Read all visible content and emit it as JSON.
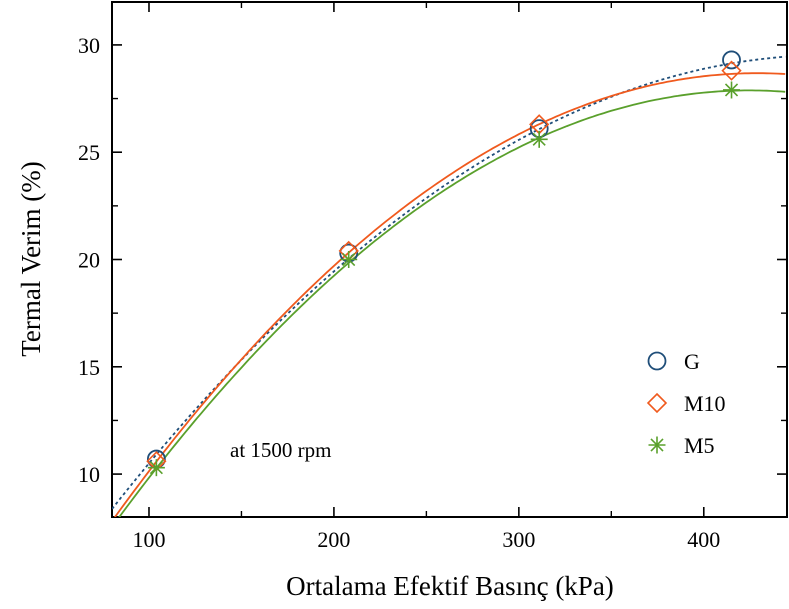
{
  "chart_data": {
    "type": "scatter",
    "xlabel": "Ortalama Efektif Basınç (kPa)",
    "ylabel": "Termal Verim (%)",
    "xlim": [
      80,
      445
    ],
    "ylim": [
      8,
      32
    ],
    "xticks": [
      100,
      200,
      300,
      400
    ],
    "yticks": [
      10,
      15,
      20,
      25,
      30
    ],
    "legend_position": "right",
    "annotation": "at 1500 rpm",
    "grid": false,
    "series": [
      {
        "name": "G",
        "marker": "circle",
        "color": "#1f4e79",
        "fit_style": "dotted",
        "x": [
          104,
          208,
          311,
          415
        ],
        "y": [
          10.7,
          20.3,
          26.1,
          29.3
        ],
        "fit_x": [
          80,
          104,
          208,
          311,
          415,
          445
        ],
        "fit_y": [
          8.4,
          10.9,
          20.0,
          26.1,
          29.2,
          29.4
        ]
      },
      {
        "name": "M10",
        "marker": "diamond",
        "color": "#f05a1e",
        "fit_style": "solid",
        "x": [
          104,
          208,
          311,
          415
        ],
        "y": [
          10.6,
          20.4,
          26.3,
          28.8
        ],
        "fit_x": [
          80,
          104,
          208,
          311,
          415,
          445
        ],
        "fit_y": [
          7.8,
          10.6,
          20.3,
          26.3,
          28.7,
          28.6
        ]
      },
      {
        "name": "M5",
        "marker": "asterisk",
        "color": "#5aa02c",
        "fit_style": "solid",
        "x": [
          104,
          208,
          311,
          415
        ],
        "y": [
          10.3,
          20.0,
          25.6,
          27.9
        ],
        "fit_x": [
          80,
          104,
          208,
          311,
          415,
          445
        ],
        "fit_y": [
          7.5,
          10.3,
          19.9,
          25.6,
          27.9,
          27.8
        ]
      }
    ]
  }
}
